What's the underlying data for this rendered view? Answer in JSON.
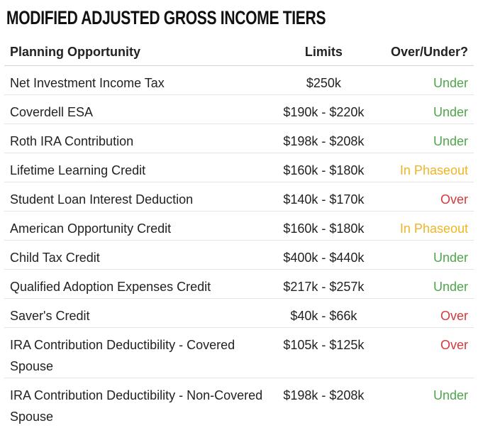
{
  "title": "MODIFIED ADJUSTED GROSS INCOME TIERS",
  "headers": {
    "opportunity": "Planning Opportunity",
    "limits": "Limits",
    "status": "Over/Under?"
  },
  "colors": {
    "Under": "#4ea64a",
    "Over": "#d23a3a",
    "In Phaseout": "#f0b526"
  },
  "rows": [
    {
      "name": "Net Investment Income Tax",
      "limits": "$250k",
      "status": "Under"
    },
    {
      "name": "Coverdell ESA",
      "limits": "$190k - $220k",
      "status": "Under"
    },
    {
      "name": "Roth IRA Contribution",
      "limits": "$198k - $208k",
      "status": "Under"
    },
    {
      "name": "Lifetime Learning Credit",
      "limits": "$160k - $180k",
      "status": "In Phaseout"
    },
    {
      "name": "Student Loan Interest Deduction",
      "limits": "$140k - $170k",
      "status": "Over"
    },
    {
      "name": "American Opportunity Credit",
      "limits": "$160k - $180k",
      "status": "In Phaseout"
    },
    {
      "name": "Child Tax Credit",
      "limits": "$400k - $440k",
      "status": "Under"
    },
    {
      "name": "Qualified Adoption Expenses Credit",
      "limits": "$217k - $257k",
      "status": "Under"
    },
    {
      "name": "Saver's Credit",
      "limits": "$40k - $66k",
      "status": "Over"
    },
    {
      "name": "IRA Contribution Deductibility - Covered Spouse",
      "limits": "$105k - $125k",
      "status": "Over"
    },
    {
      "name": "IRA Contribution Deductibility - Non-Covered Spouse",
      "limits": "$198k - $208k",
      "status": "Under"
    }
  ]
}
